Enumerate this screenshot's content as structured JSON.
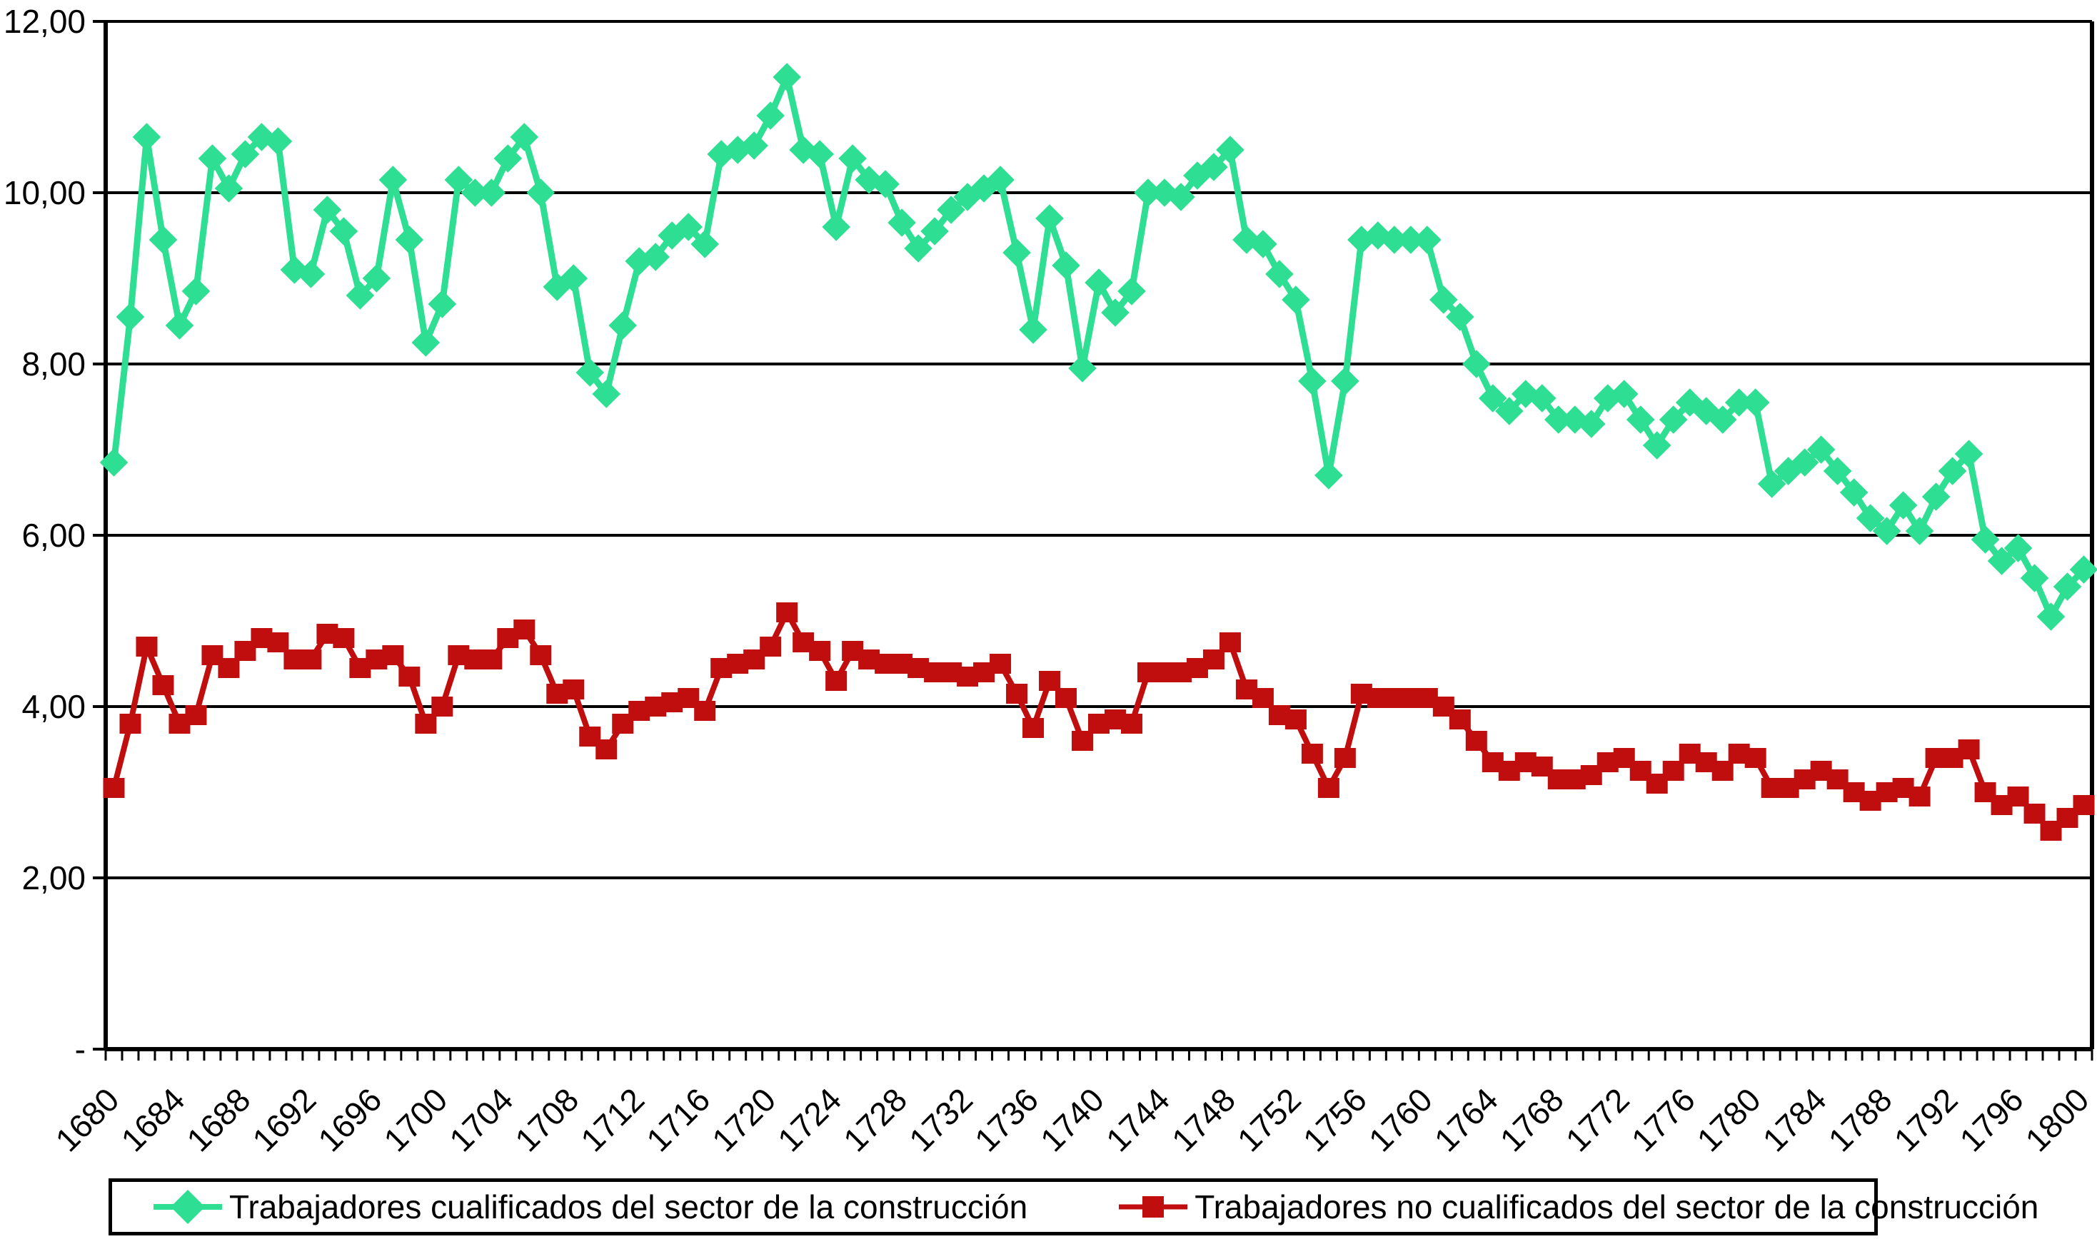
{
  "chart_data": {
    "type": "line",
    "title": "",
    "xlabel": "",
    "ylabel": "",
    "ylim": [
      0,
      12
    ],
    "y_gridline_step": 2,
    "grid": true,
    "legend_position": "bottom",
    "y_tick_labels": [
      "12,00",
      "10,00",
      "8,00",
      "6,00",
      "4,00",
      "2,00",
      "-"
    ],
    "x_tick_labels": [
      "1680",
      "1684",
      "1688",
      "1692",
      "1696",
      "1700",
      "1704",
      "1708",
      "1712",
      "1716",
      "1720",
      "1724",
      "1728",
      "1732",
      "1736",
      "1740",
      "1744",
      "1748",
      "1752",
      "1756",
      "1760",
      "1764",
      "1768",
      "1772",
      "1776",
      "1780",
      "1784",
      "1788",
      "1792",
      "1796",
      "1800"
    ],
    "years": [
      1680,
      1681,
      1682,
      1683,
      1684,
      1685,
      1686,
      1687,
      1688,
      1689,
      1690,
      1691,
      1692,
      1693,
      1694,
      1695,
      1696,
      1697,
      1698,
      1699,
      1700,
      1701,
      1702,
      1703,
      1704,
      1705,
      1706,
      1707,
      1708,
      1709,
      1710,
      1711,
      1712,
      1713,
      1714,
      1715,
      1716,
      1717,
      1718,
      1719,
      1720,
      1721,
      1722,
      1723,
      1724,
      1725,
      1726,
      1727,
      1728,
      1729,
      1730,
      1731,
      1732,
      1733,
      1734,
      1735,
      1736,
      1737,
      1738,
      1739,
      1740,
      1741,
      1742,
      1743,
      1744,
      1745,
      1746,
      1747,
      1748,
      1749,
      1750,
      1751,
      1752,
      1753,
      1754,
      1755,
      1756,
      1757,
      1758,
      1759,
      1760,
      1761,
      1762,
      1763,
      1764,
      1765,
      1766,
      1767,
      1768,
      1769,
      1770,
      1771,
      1772,
      1773,
      1774,
      1775,
      1776,
      1777,
      1778,
      1779,
      1780,
      1781,
      1782,
      1783,
      1784,
      1785,
      1786,
      1787,
      1788,
      1789,
      1790,
      1791,
      1792,
      1793,
      1794,
      1795,
      1796,
      1797,
      1798,
      1799,
      1800
    ],
    "series": [
      {
        "name": "Trabajadores cualificados del sector de la construcción",
        "color": "#2EDE92",
        "marker": "diamond",
        "values": [
          6.85,
          8.55,
          10.65,
          9.45,
          8.45,
          8.85,
          10.4,
          10.05,
          10.45,
          10.65,
          10.6,
          9.1,
          9.05,
          9.8,
          9.55,
          8.8,
          9.0,
          10.15,
          9.45,
          8.25,
          8.7,
          10.15,
          10.0,
          10.0,
          10.4,
          10.65,
          10.0,
          8.9,
          9.0,
          7.9,
          7.65,
          8.45,
          9.2,
          9.25,
          9.5,
          9.6,
          9.4,
          10.45,
          10.5,
          10.55,
          10.9,
          11.35,
          10.5,
          10.45,
          9.6,
          10.4,
          10.15,
          10.1,
          9.65,
          9.35,
          9.55,
          9.8,
          9.95,
          10.05,
          10.15,
          9.3,
          8.4,
          9.7,
          9.15,
          7.95,
          8.95,
          8.6,
          8.85,
          10.0,
          10.0,
          9.95,
          10.2,
          10.3,
          10.5,
          9.45,
          9.4,
          9.05,
          8.75,
          7.8,
          6.7,
          7.8,
          9.45,
          9.5,
          9.45,
          9.45,
          9.45,
          8.75,
          8.55,
          8.0,
          7.6,
          7.45,
          7.65,
          7.6,
          7.35,
          7.35,
          7.3,
          7.6,
          7.65,
          7.35,
          7.05,
          7.35,
          7.55,
          7.45,
          7.35,
          7.55,
          7.55,
          6.6,
          6.75,
          6.85,
          7.0,
          6.75,
          6.5,
          6.2,
          6.05,
          6.35,
          6.05,
          6.45,
          6.75,
          6.95,
          5.95,
          5.7,
          5.85,
          5.5,
          5.05,
          5.4,
          5.6
        ]
      },
      {
        "name": "Trabajadores no cualificados del sector de la construcción",
        "color": "#C00D0D",
        "marker": "square",
        "values": [
          3.05,
          3.8,
          4.7,
          4.25,
          3.8,
          3.9,
          4.6,
          4.45,
          4.65,
          4.8,
          4.75,
          4.55,
          4.55,
          4.85,
          4.8,
          4.45,
          4.55,
          4.6,
          4.35,
          3.8,
          4.0,
          4.6,
          4.55,
          4.55,
          4.8,
          4.9,
          4.6,
          4.15,
          4.2,
          3.65,
          3.5,
          3.8,
          3.95,
          4.0,
          4.05,
          4.1,
          3.95,
          4.45,
          4.5,
          4.55,
          4.7,
          5.1,
          4.75,
          4.65,
          4.3,
          4.65,
          4.55,
          4.5,
          4.5,
          4.45,
          4.4,
          4.4,
          4.35,
          4.4,
          4.5,
          4.15,
          3.75,
          4.3,
          4.1,
          3.6,
          3.8,
          3.85,
          3.8,
          4.4,
          4.4,
          4.4,
          4.45,
          4.55,
          4.75,
          4.2,
          4.1,
          3.9,
          3.85,
          3.45,
          3.05,
          3.4,
          4.15,
          4.1,
          4.1,
          4.1,
          4.1,
          4.0,
          3.85,
          3.6,
          3.35,
          3.25,
          3.35,
          3.3,
          3.15,
          3.15,
          3.2,
          3.35,
          3.4,
          3.25,
          3.1,
          3.25,
          3.45,
          3.35,
          3.25,
          3.45,
          3.4,
          3.05,
          3.05,
          3.15,
          3.25,
          3.15,
          3.0,
          2.9,
          3.0,
          3.05,
          2.95,
          3.4,
          3.4,
          3.5,
          3.0,
          2.85,
          2.95,
          2.75,
          2.55,
          2.7,
          2.85
        ]
      }
    ]
  },
  "legend": {
    "items": [
      {
        "label": "Trabajadores cualificados del sector de la construcción"
      },
      {
        "label": "Trabajadores no cualificados del sector de la construcción"
      }
    ]
  }
}
